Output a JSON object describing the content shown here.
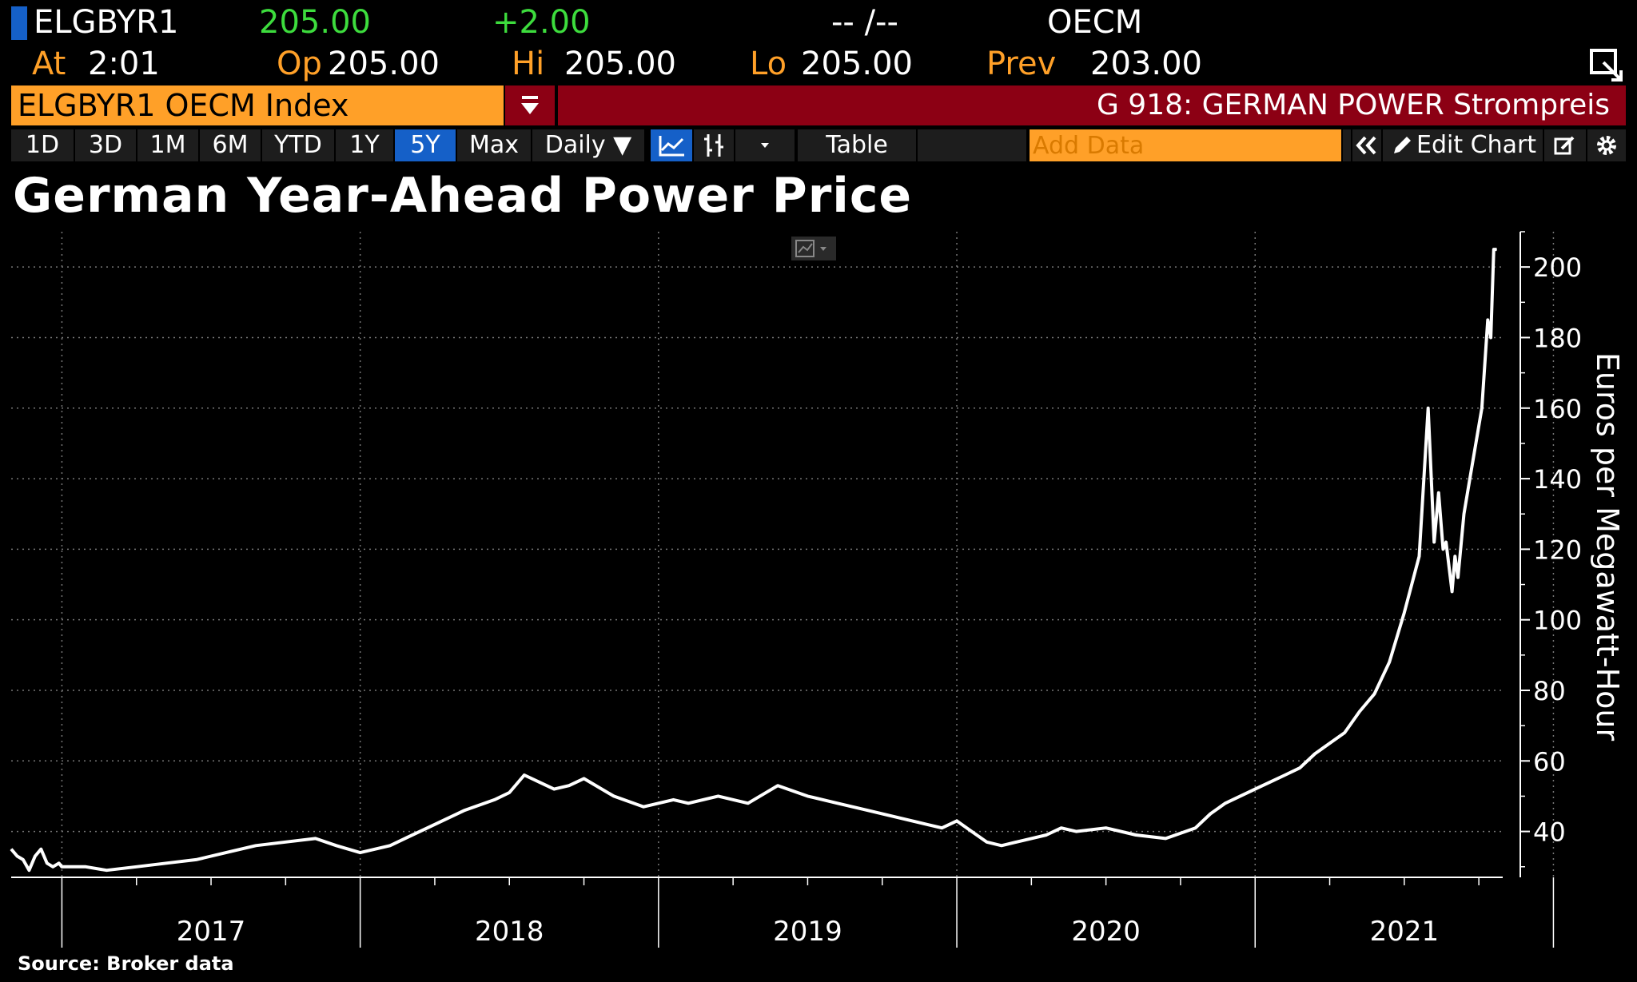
{
  "header": {
    "ticker": "ELGBYR1",
    "last": "205.00",
    "change": "+2.00",
    "bid_ask": "-- /--",
    "exchange": "OECM",
    "at_label": "At",
    "time": "2:01",
    "op_label": "Op",
    "op": "205.00",
    "hi_label": "Hi",
    "hi": "205.00",
    "lo_label": "Lo",
    "lo": "205.00",
    "prev_label": "Prev",
    "prev": "203.00"
  },
  "security_bar": {
    "security": "ELGBYR1 OECM Index",
    "description": "G 918: GERMAN POWER Strompreis"
  },
  "toolbar": {
    "ranges": [
      "1D",
      "3D",
      "1M",
      "6M",
      "YTD",
      "1Y",
      "5Y",
      "Max"
    ],
    "active_range": "5Y",
    "frequency": "Daily ▼",
    "table_label": "Table",
    "add_data_placeholder": "Add Data",
    "edit_chart_label": "Edit Chart"
  },
  "colors": {
    "amber": "#ffa028",
    "red_bar": "#8c0014",
    "active_blue": "#1560c8",
    "green": "#3ddc3d"
  },
  "chart_data": {
    "type": "line",
    "title": "German Year-Ahead Power Price",
    "ylabel": "Euros per Megawatt-Hour",
    "xlabel": "",
    "source": "Source: Broker data",
    "ylim": [
      27,
      210
    ],
    "xlim": [
      2016.83,
      2021.83
    ],
    "yticks": [
      40,
      60,
      80,
      100,
      120,
      140,
      160,
      180,
      200
    ],
    "xtick_labels": [
      "2017",
      "2018",
      "2019",
      "2020",
      "2021"
    ],
    "year_boundaries": [
      2017,
      2018,
      2019,
      2020,
      2021,
      2022
    ],
    "grid": true,
    "series": [
      {
        "name": "ELGBYR1 OECM Index",
        "x": [
          2016.83,
          2016.85,
          2016.87,
          2016.89,
          2016.91,
          2016.93,
          2016.95,
          2016.97,
          2016.99,
          2017.0,
          2017.02,
          2017.08,
          2017.15,
          2017.25,
          2017.35,
          2017.45,
          2017.55,
          2017.65,
          2017.75,
          2017.85,
          2017.92,
          2018.0,
          2018.05,
          2018.1,
          2018.15,
          2018.25,
          2018.35,
          2018.45,
          2018.5,
          2018.55,
          2018.6,
          2018.65,
          2018.7,
          2018.75,
          2018.85,
          2018.95,
          2019.0,
          2019.05,
          2019.1,
          2019.2,
          2019.3,
          2019.4,
          2019.5,
          2019.6,
          2019.7,
          2019.8,
          2019.9,
          2019.95,
          2020.0,
          2020.05,
          2020.1,
          2020.15,
          2020.2,
          2020.25,
          2020.3,
          2020.35,
          2020.4,
          2020.5,
          2020.6,
          2020.7,
          2020.8,
          2020.85,
          2020.9,
          2021.0,
          2021.05,
          2021.1,
          2021.15,
          2021.2,
          2021.25,
          2021.3,
          2021.35,
          2021.4,
          2021.45,
          2021.5,
          2021.55,
          2021.58,
          2021.6,
          2021.615,
          2021.63,
          2021.64,
          2021.66,
          2021.67,
          2021.68,
          2021.7,
          2021.72,
          2021.74,
          2021.76,
          2021.78,
          2021.79,
          2021.8,
          2021.81
        ],
        "y": [
          35,
          33,
          32,
          29,
          33,
          35,
          31,
          30,
          31,
          30,
          30,
          30,
          29,
          30,
          31,
          32,
          34,
          36,
          37,
          38,
          36,
          34,
          35,
          36,
          38,
          42,
          46,
          49,
          51,
          56,
          54,
          52,
          53,
          55,
          50,
          47,
          48,
          49,
          48,
          50,
          48,
          53,
          50,
          48,
          46,
          44,
          42,
          41,
          43,
          40,
          37,
          36,
          37,
          38,
          39,
          41,
          40,
          41,
          39,
          38,
          41,
          45,
          48,
          52,
          54,
          56,
          58,
          62,
          65,
          68,
          74,
          79,
          88,
          102,
          118,
          160,
          122,
          136,
          120,
          122,
          108,
          118,
          112,
          130,
          140,
          150,
          160,
          185,
          180,
          205,
          205
        ]
      }
    ]
  }
}
